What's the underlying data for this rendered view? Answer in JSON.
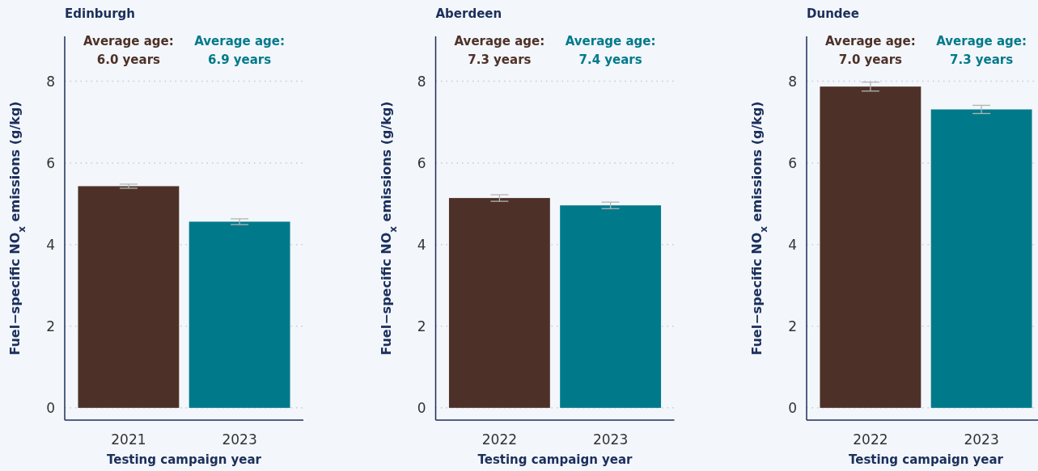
{
  "chart_data": [
    {
      "type": "bar",
      "title": "Edinburgh",
      "xlabel": "Testing campaign year",
      "ylabel": "Fuel−specific NO$_{x}$ emissions (g/kg)",
      "categories": [
        "2021",
        "2023"
      ],
      "values": [
        5.43,
        4.56
      ],
      "errors": [
        0.05,
        0.07
      ],
      "colors": [
        "#4d3128",
        "#007a8a"
      ],
      "ylim": [
        -0.3,
        9.1
      ],
      "yticks": [
        0,
        2,
        4,
        6,
        8
      ],
      "grid": "y",
      "annotations": [
        "Average age:\n6.0 years",
        "Average age:\n6.9 years"
      ]
    },
    {
      "type": "bar",
      "title": "Aberdeen",
      "xlabel": "Testing campaign year",
      "ylabel": "Fuel−specific NO$_{x}$ emissions (g/kg)",
      "categories": [
        "2022",
        "2023"
      ],
      "values": [
        5.14,
        4.96
      ],
      "errors": [
        0.08,
        0.08
      ],
      "colors": [
        "#4d3128",
        "#007a8a"
      ],
      "ylim": [
        -0.3,
        9.1
      ],
      "yticks": [
        0,
        2,
        4,
        6,
        8
      ],
      "grid": "y",
      "annotations": [
        "Average age:\n7.3 years",
        "Average age:\n7.4 years"
      ]
    },
    {
      "type": "bar",
      "title": "Dundee",
      "xlabel": "Testing campaign year",
      "ylabel": "Fuel−specific NO$_{x}$ emissions (g/kg)",
      "categories": [
        "2022",
        "2023"
      ],
      "values": [
        7.87,
        7.31
      ],
      "errors": [
        0.11,
        0.1
      ],
      "colors": [
        "#4d3128",
        "#007a8a"
      ],
      "ylim": [
        -0.3,
        9.1
      ],
      "yticks": [
        0,
        2,
        4,
        6,
        8
      ],
      "grid": "y",
      "annotations": [
        "Average age:\n7.0 years",
        "Average age:\n7.3 years"
      ]
    }
  ]
}
